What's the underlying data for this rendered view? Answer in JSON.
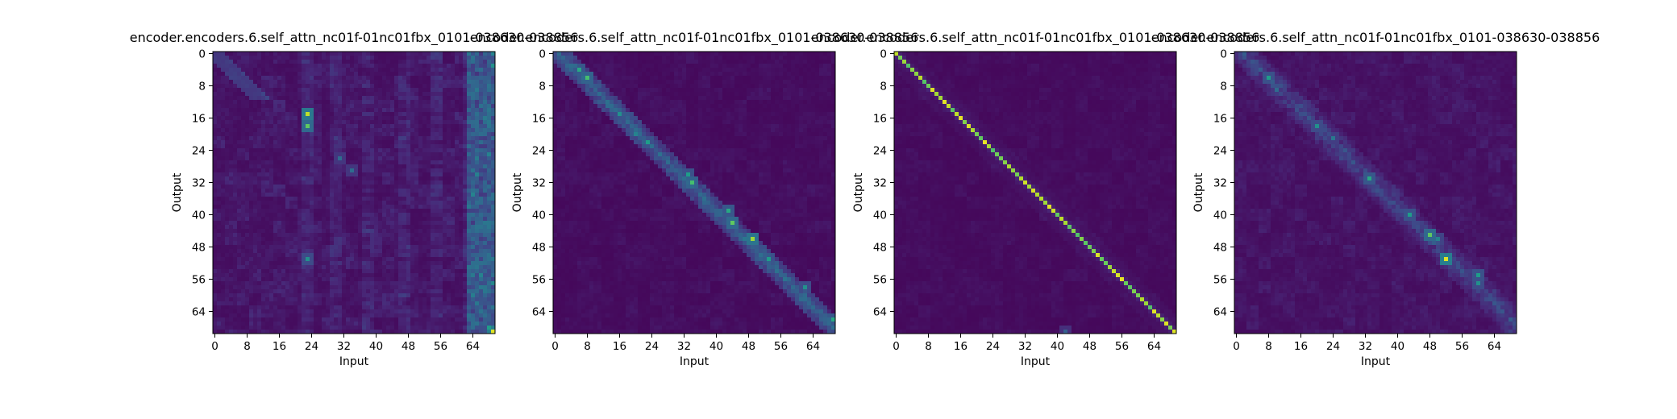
{
  "chart_data": [
    {
      "type": "heatmap",
      "title": "encoder.encoders.6.self_attn_nc01f-01nc01fbx_0101-038630-038856",
      "xlabel": "Input",
      "ylabel": "Output",
      "n_input": 70,
      "n_output": 70,
      "xticks": [
        "0",
        "8",
        "16",
        "24",
        "32",
        "40",
        "48",
        "56",
        "64"
      ],
      "yticks": [
        "0",
        "8",
        "16",
        "24",
        "32",
        "40",
        "48",
        "56",
        "64"
      ],
      "colormap": "viridis",
      "vmin": 0,
      "vmax": 1,
      "pattern": "diffuse",
      "hotspots": [
        {
          "x": 23,
          "y": 15,
          "v": 0.9
        },
        {
          "x": 23,
          "y": 18,
          "v": 0.75
        },
        {
          "x": 69,
          "y": 0,
          "v": 0.45
        },
        {
          "x": 69,
          "y": 3,
          "v": 0.5
        },
        {
          "x": 68,
          "y": 68,
          "v": 0.55
        },
        {
          "x": 69,
          "y": 69,
          "v": 0.95
        },
        {
          "x": 64,
          "y": 35,
          "v": 0.45
        },
        {
          "x": 64,
          "y": 40,
          "v": 0.35
        },
        {
          "x": 23,
          "y": 51,
          "v": 0.5
        },
        {
          "x": 31,
          "y": 26,
          "v": 0.35
        },
        {
          "x": 34,
          "y": 29,
          "v": 0.35
        },
        {
          "x": 66,
          "y": 55,
          "v": 0.45
        },
        {
          "x": 65,
          "y": 62,
          "v": 0.4
        }
      ]
    },
    {
      "type": "heatmap",
      "title": "encoder.encoders.6.self_attn_nc01f-01nc01fbx_0101-038630-038856",
      "xlabel": "Input",
      "ylabel": "Output",
      "n_input": 70,
      "n_output": 70,
      "xticks": [
        "0",
        "8",
        "16",
        "24",
        "32",
        "40",
        "48",
        "56",
        "64"
      ],
      "yticks": [
        "0",
        "8",
        "16",
        "24",
        "32",
        "40",
        "48",
        "56",
        "64"
      ],
      "colormap": "viridis",
      "vmin": 0,
      "vmax": 1,
      "pattern": "blurred-diagonal",
      "hotspots": [
        {
          "x": 6,
          "y": 4,
          "v": 0.6
        },
        {
          "x": 8,
          "y": 6,
          "v": 0.7
        },
        {
          "x": 11,
          "y": 10,
          "v": 0.35
        },
        {
          "x": 16,
          "y": 15,
          "v": 0.5
        },
        {
          "x": 20,
          "y": 20,
          "v": 0.45
        },
        {
          "x": 23,
          "y": 22,
          "v": 0.55
        },
        {
          "x": 33,
          "y": 30,
          "v": 0.55
        },
        {
          "x": 34,
          "y": 32,
          "v": 0.7
        },
        {
          "x": 43,
          "y": 39,
          "v": 0.6
        },
        {
          "x": 44,
          "y": 42,
          "v": 0.75
        },
        {
          "x": 49,
          "y": 46,
          "v": 0.85
        },
        {
          "x": 53,
          "y": 51,
          "v": 0.55
        },
        {
          "x": 62,
          "y": 58,
          "v": 0.5
        },
        {
          "x": 69,
          "y": 66,
          "v": 0.6
        }
      ]
    },
    {
      "type": "heatmap",
      "title": "encoder.encoders.6.self_attn_nc01f-01nc01fbx_0101-038630-038856",
      "xlabel": "Input",
      "ylabel": "Output",
      "n_input": 70,
      "n_output": 70,
      "xticks": [
        "0",
        "8",
        "16",
        "24",
        "32",
        "40",
        "48",
        "56",
        "64"
      ],
      "yticks": [
        "0",
        "8",
        "16",
        "24",
        "32",
        "40",
        "48",
        "56",
        "64"
      ],
      "colormap": "viridis",
      "vmin": 0,
      "vmax": 1,
      "pattern": "sharp-diagonal",
      "hotspots": [
        {
          "x": 42,
          "y": 69,
          "v": 0.3
        }
      ]
    },
    {
      "type": "heatmap",
      "title": "encoder.encoders.6.self_attn_nc01f-01nc01fbx_0101-038630-038856",
      "xlabel": "Input",
      "ylabel": "Output",
      "n_input": 70,
      "n_output": 70,
      "xticks": [
        "0",
        "8",
        "16",
        "24",
        "32",
        "40",
        "48",
        "56",
        "64"
      ],
      "yticks": [
        "0",
        "8",
        "16",
        "24",
        "32",
        "40",
        "48",
        "56",
        "64"
      ],
      "colormap": "viridis",
      "vmin": 0,
      "vmax": 1,
      "pattern": "scattered-diagonal",
      "hotspots": [
        {
          "x": 8,
          "y": 6,
          "v": 0.55
        },
        {
          "x": 10,
          "y": 9,
          "v": 0.35
        },
        {
          "x": 20,
          "y": 18,
          "v": 0.5
        },
        {
          "x": 24,
          "y": 21,
          "v": 0.4
        },
        {
          "x": 33,
          "y": 31,
          "v": 0.6
        },
        {
          "x": 43,
          "y": 40,
          "v": 0.55
        },
        {
          "x": 48,
          "y": 45,
          "v": 0.75
        },
        {
          "x": 50,
          "y": 46,
          "v": 0.45
        },
        {
          "x": 52,
          "y": 51,
          "v": 0.95
        },
        {
          "x": 60,
          "y": 55,
          "v": 0.55
        },
        {
          "x": 60,
          "y": 57,
          "v": 0.5
        }
      ]
    }
  ]
}
